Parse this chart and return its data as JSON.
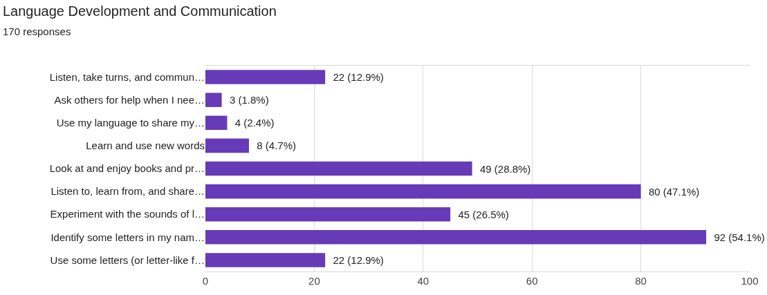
{
  "chart_data": {
    "type": "bar",
    "orientation": "horizontal",
    "title": "Language Development and Communication",
    "subtitle": "170 responses",
    "categories": [
      "Listen, take turns, and commun…",
      "Ask others for help when I nee…",
      "Use my language to share my…",
      "Learn and use new words",
      "Look at and enjoy books and pr…",
      "Listen to, learn from, and share…",
      "Experiment with the sounds of l…",
      "Identify some letters in my nam…",
      "Use some letters (or letter-like f…"
    ],
    "values": [
      22,
      3,
      4,
      8,
      49,
      80,
      45,
      92,
      22
    ],
    "value_labels": [
      "22 (12.9%)",
      "3 (1.8%)",
      "4 (2.4%)",
      "8 (4.7%)",
      "49 (28.8%)",
      "80 (47.1%)",
      "45 (26.5%)",
      "92 (54.1%)",
      "22 (12.9%)"
    ],
    "color": "#673ab7",
    "xlim": [
      0,
      100
    ],
    "xticks": [
      0,
      20,
      40,
      60,
      80,
      100
    ],
    "grid": "x"
  }
}
